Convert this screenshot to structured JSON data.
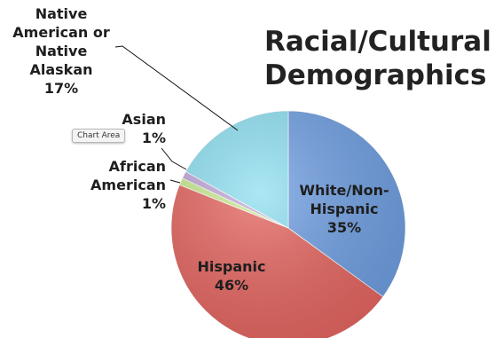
{
  "tooltip": "Chart Area",
  "chart_data": {
    "type": "pie",
    "title_lines": [
      "Racial/Cultural",
      "Demographics"
    ],
    "slices": [
      {
        "key": "white",
        "label_lines": [
          "White/Non-",
          "Hispanic"
        ],
        "percent_text": "35%",
        "value": 35,
        "color": "#6f9fe3"
      },
      {
        "key": "hispanic",
        "label_lines": [
          "Hispanic"
        ],
        "percent_text": "46%",
        "value": 46,
        "color": "#e66560"
      },
      {
        "key": "african_american",
        "label_lines": [
          "African",
          "American"
        ],
        "percent_text": "1%",
        "value": 1,
        "color": "#c9ec8f"
      },
      {
        "key": "asian",
        "label_lines": [
          "Asian"
        ],
        "percent_text": "1%",
        "value": 1,
        "color": "#c3a8dc"
      },
      {
        "key": "native",
        "label_lines": [
          "Native",
          "American or",
          "Native",
          "Alaskan"
        ],
        "percent_text": "17%",
        "value": 17,
        "color": "#8fe0f2"
      }
    ]
  }
}
